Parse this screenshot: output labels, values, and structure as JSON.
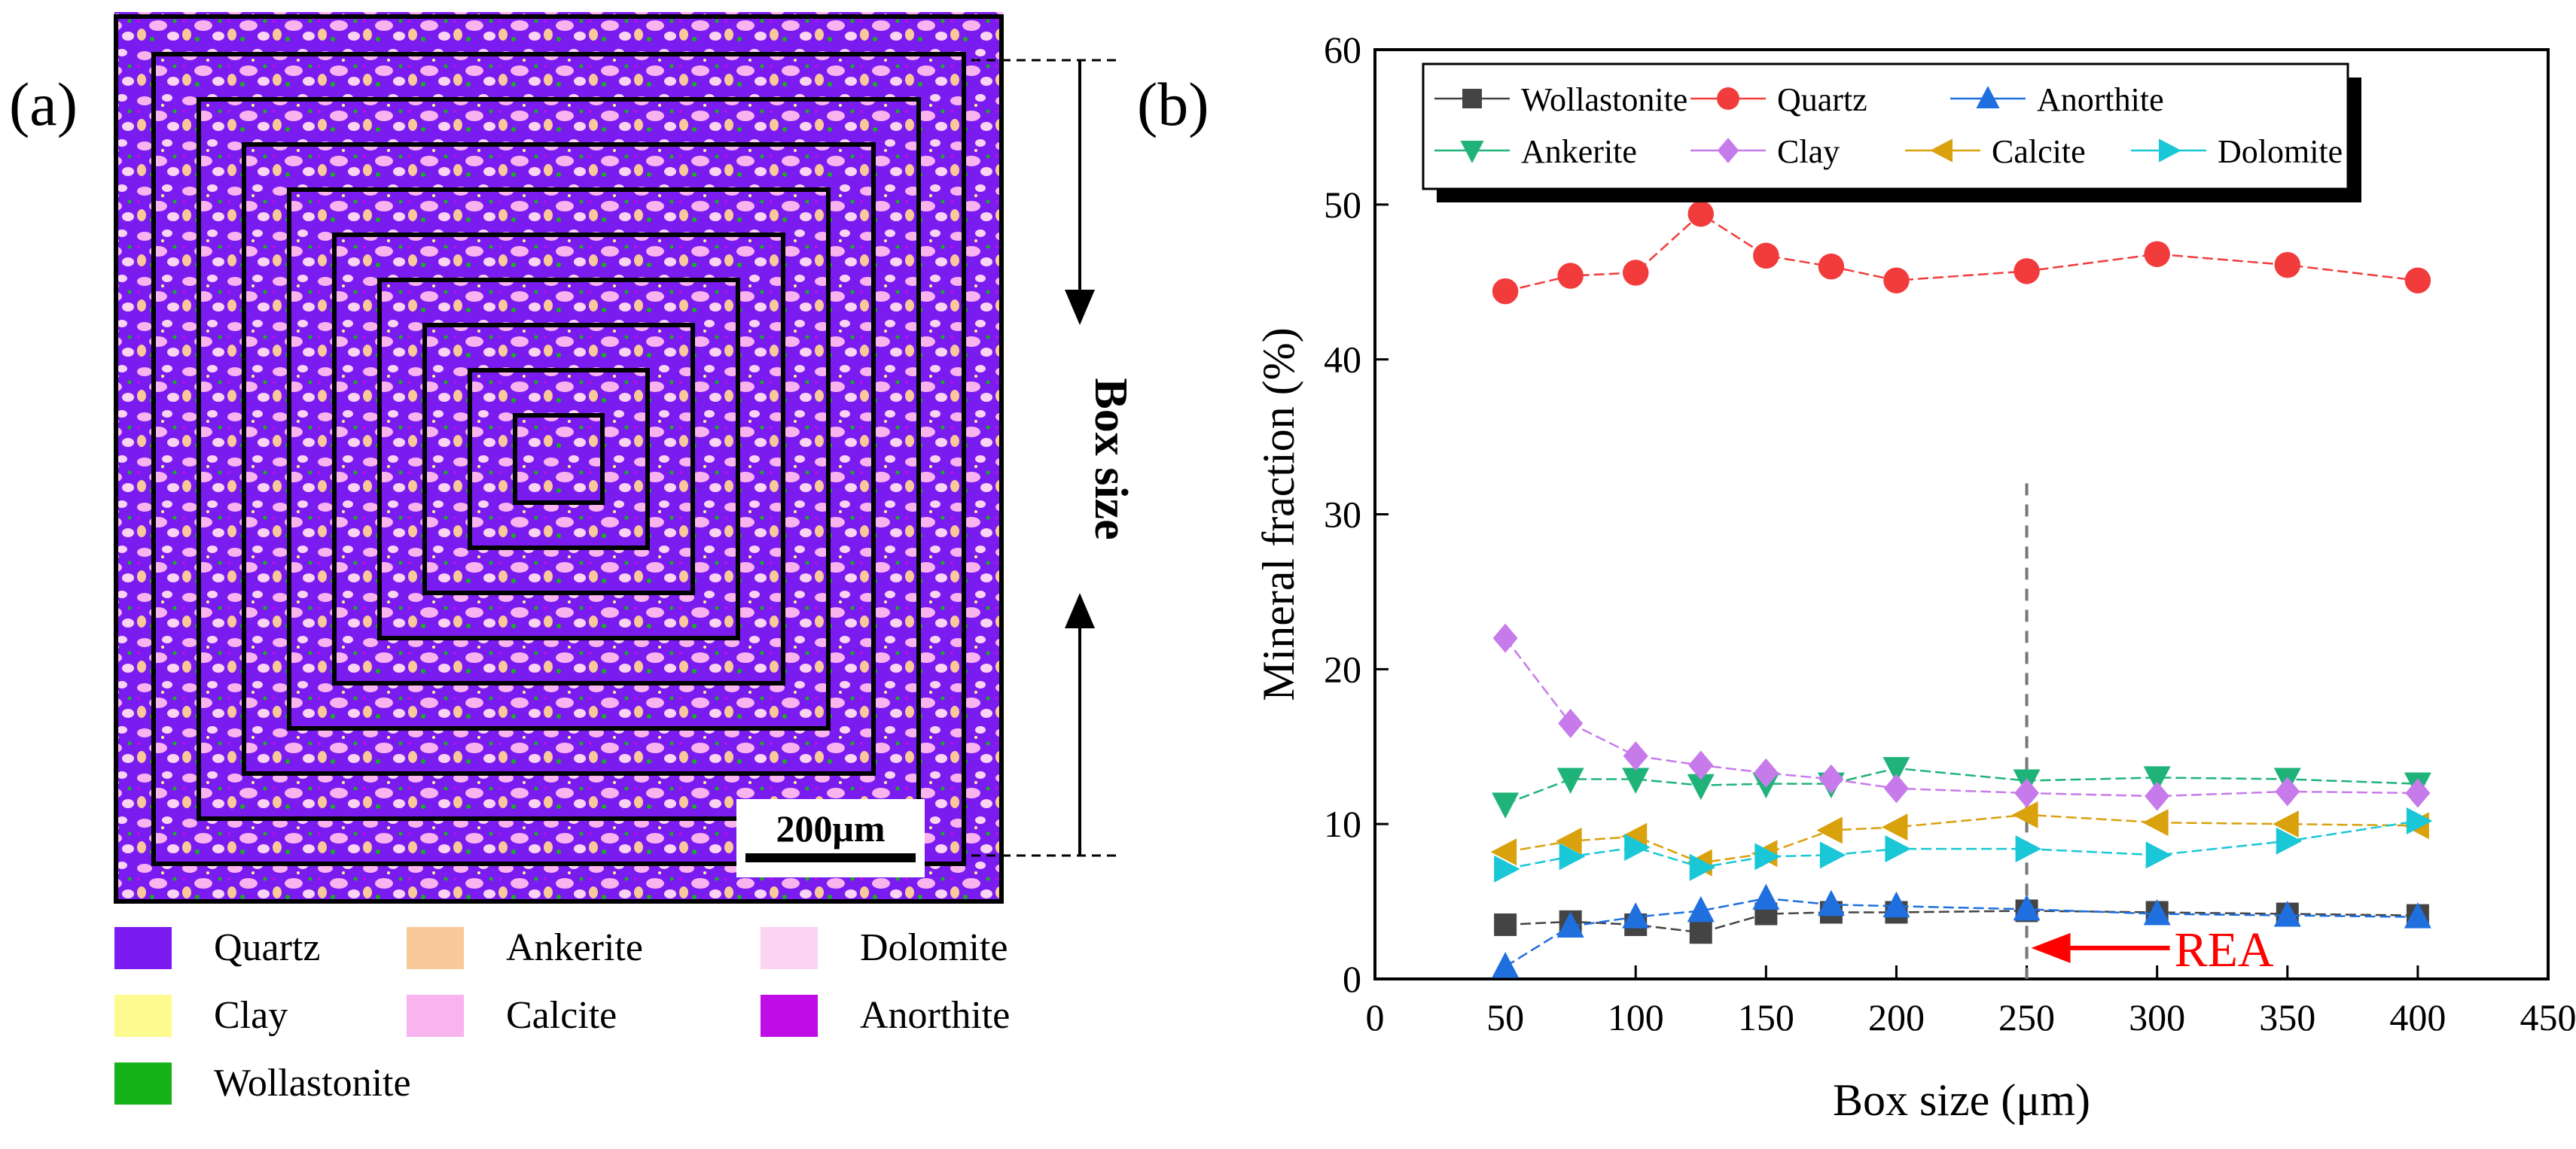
{
  "panel_a": {
    "label": "(a)",
    "box_size_label": "Box size",
    "scale_bar_label": "200μm",
    "legend": [
      {
        "name": "Quartz",
        "color": "#7a1cf0"
      },
      {
        "name": "Ankerite",
        "color": "#f9c99a"
      },
      {
        "name": "Dolomite",
        "color": "#fbd3f3"
      },
      {
        "name": "Clay",
        "color": "#fdfb8f"
      },
      {
        "name": "Calcite",
        "color": "#f9b4ef"
      },
      {
        "name": "Anorthite",
        "color": "#c00de8"
      },
      {
        "name": "Wollastonite",
        "color": "#16b21a"
      }
    ]
  },
  "panel_b": {
    "label": "(b)",
    "rea_label": "REA"
  },
  "chart_data": {
    "type": "line",
    "title": "",
    "xlabel": "Box size (μm)",
    "ylabel": "Mineral fraction (%)",
    "xlim": [
      0,
      450
    ],
    "ylim": [
      0,
      60
    ],
    "xticks": [
      0,
      50,
      100,
      150,
      200,
      250,
      300,
      350,
      400,
      450
    ],
    "yticks": [
      0,
      10,
      20,
      30,
      40,
      50,
      60
    ],
    "reference_line_x": 250,
    "annotation": {
      "text": "REA",
      "x": 250,
      "y": 2
    },
    "legend_position": "top",
    "series": [
      {
        "name": "Wollastonite",
        "color": "#444444",
        "marker": "square",
        "x": [
          50,
          75,
          100,
          125,
          150,
          175,
          200,
          250,
          300,
          350,
          400
        ],
        "y": [
          3.5,
          3.7,
          3.5,
          3.0,
          4.2,
          4.3,
          4.3,
          4.4,
          4.3,
          4.2,
          4.1
        ]
      },
      {
        "name": "Quartz",
        "color": "#f23c3c",
        "marker": "circle",
        "x": [
          50,
          75,
          100,
          125,
          150,
          175,
          200,
          250,
          300,
          350,
          400
        ],
        "y": [
          44.4,
          45.4,
          45.6,
          49.4,
          46.7,
          46.0,
          45.1,
          45.7,
          46.8,
          46.1,
          45.1
        ]
      },
      {
        "name": "Anorthite",
        "color": "#1f6fde",
        "marker": "triangle-up",
        "x": [
          50,
          75,
          100,
          125,
          150,
          175,
          200,
          250,
          300,
          350,
          400
        ],
        "y": [
          0.8,
          3.4,
          4.0,
          4.4,
          5.2,
          4.8,
          4.7,
          4.5,
          4.2,
          4.1,
          4.0
        ]
      },
      {
        "name": "Ankerite",
        "color": "#1fb37a",
        "marker": "triangle-down",
        "x": [
          50,
          75,
          100,
          125,
          150,
          175,
          200,
          250,
          300,
          350,
          400
        ],
        "y": [
          11.3,
          12.9,
          12.9,
          12.5,
          12.6,
          12.6,
          13.6,
          12.8,
          13.0,
          12.9,
          12.6
        ]
      },
      {
        "name": "Clay",
        "color": "#c77bea",
        "marker": "diamond",
        "x": [
          50,
          75,
          100,
          125,
          150,
          175,
          200,
          250,
          300,
          350,
          400
        ],
        "y": [
          22.0,
          16.5,
          14.4,
          13.8,
          13.3,
          12.9,
          12.3,
          12.0,
          11.8,
          12.1,
          12.0
        ]
      },
      {
        "name": "Calcite",
        "color": "#d9a10c",
        "marker": "triangle-left",
        "x": [
          50,
          75,
          100,
          125,
          150,
          175,
          200,
          250,
          300,
          350,
          400
        ],
        "y": [
          8.2,
          8.9,
          9.2,
          7.5,
          8.1,
          9.6,
          9.8,
          10.6,
          10.1,
          10.0,
          9.9
        ]
      },
      {
        "name": "Dolomite",
        "color": "#19c7d6",
        "marker": "triangle-right",
        "x": [
          50,
          75,
          100,
          125,
          150,
          175,
          200,
          250,
          300,
          350,
          400
        ],
        "y": [
          7.1,
          7.9,
          8.5,
          7.2,
          7.9,
          8.0,
          8.4,
          8.4,
          8.0,
          8.9,
          10.2
        ]
      }
    ]
  }
}
